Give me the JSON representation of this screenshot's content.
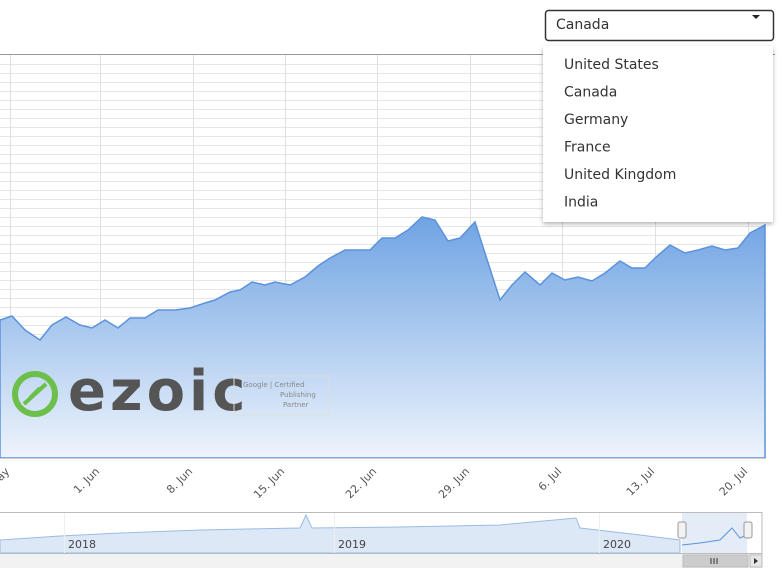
{
  "dropdown": {
    "selected": "Canada",
    "options": [
      "United States",
      "Canada",
      "Germany",
      "France",
      "United Kingdom",
      "India"
    ]
  },
  "chart": {
    "x_labels": [
      "ay",
      "1. Jun",
      "8. Jun",
      "15. Jun",
      "22. Jun",
      "29. Jun",
      "6. Jul",
      "13. Jul",
      "20. Jul"
    ]
  },
  "navigator": {
    "labels": [
      "2018",
      "2019",
      "2020"
    ]
  },
  "watermark": {
    "brand": "ezoic",
    "badge": [
      "Google | Certified",
      "Publishing",
      "Partner"
    ]
  }
}
